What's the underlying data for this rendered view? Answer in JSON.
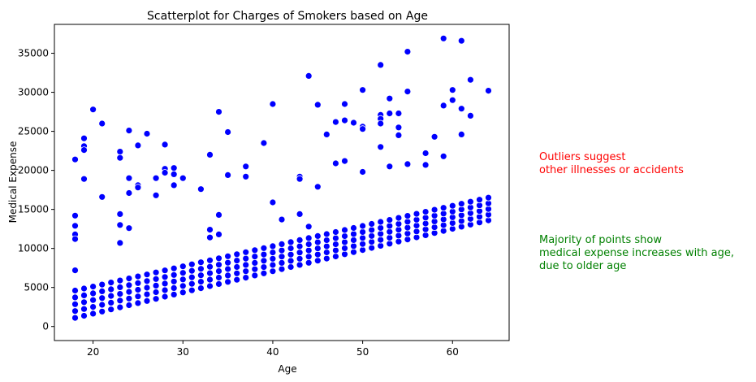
{
  "chart_data": {
    "type": "scatter",
    "title": "Scatterplot for Charges of Smokers based on Age",
    "xlabel": "Age",
    "ylabel": "Medical Expense",
    "xlim": [
      15.7,
      66.3
    ],
    "ylim": [
      -1800,
      38700
    ],
    "xticks": [
      20,
      30,
      40,
      50,
      60
    ],
    "yticks": [
      0,
      5000,
      10000,
      15000,
      20000,
      25000,
      30000,
      35000
    ],
    "grid": false,
    "marker_color": "#0000ff",
    "band": {
      "description_only": false,
      "lower_start": [
        18,
        1100
      ],
      "lower_end": [
        64,
        13600
      ],
      "upper_start": [
        18,
        4600
      ],
      "upper_end": [
        64,
        16500
      ],
      "rows": 5
    },
    "series": [
      {
        "points": [
          [
            18,
            21400
          ],
          [
            18,
            14200
          ],
          [
            18,
            12900
          ],
          [
            18,
            11800
          ],
          [
            18,
            11200
          ],
          [
            18,
            7200
          ],
          [
            19,
            24100
          ],
          [
            19,
            23100
          ],
          [
            19,
            22600
          ],
          [
            19,
            18900
          ],
          [
            20,
            27800
          ],
          [
            21,
            26000
          ],
          [
            21,
            16600
          ],
          [
            23,
            22400
          ],
          [
            23,
            21600
          ],
          [
            23,
            14400
          ],
          [
            23,
            13000
          ],
          [
            23,
            10700
          ],
          [
            24,
            25100
          ],
          [
            24,
            19000
          ],
          [
            24,
            17100
          ],
          [
            24,
            12600
          ],
          [
            25,
            23200
          ],
          [
            25,
            18100
          ],
          [
            25,
            17800
          ],
          [
            26,
            24700
          ],
          [
            27,
            19000
          ],
          [
            27,
            16800
          ],
          [
            28,
            23300
          ],
          [
            28,
            20200
          ],
          [
            28,
            19700
          ],
          [
            29,
            20300
          ],
          [
            29,
            19500
          ],
          [
            29,
            18100
          ],
          [
            30,
            19000
          ],
          [
            32,
            17600
          ],
          [
            33,
            22000
          ],
          [
            33,
            12400
          ],
          [
            33,
            11400
          ],
          [
            34,
            27500
          ],
          [
            34,
            14300
          ],
          [
            34,
            11800
          ],
          [
            35,
            24900
          ],
          [
            35,
            19400
          ],
          [
            37,
            20500
          ],
          [
            37,
            19200
          ],
          [
            39,
            23500
          ],
          [
            40,
            28500
          ],
          [
            40,
            15900
          ],
          [
            41,
            13700
          ],
          [
            43,
            19200
          ],
          [
            43,
            18900
          ],
          [
            43,
            14400
          ],
          [
            44,
            32100
          ],
          [
            44,
            12800
          ],
          [
            45,
            28400
          ],
          [
            45,
            17900
          ],
          [
            46,
            24600
          ],
          [
            47,
            26200
          ],
          [
            47,
            20900
          ],
          [
            48,
            28500
          ],
          [
            48,
            26400
          ],
          [
            48,
            21200
          ],
          [
            49,
            26100
          ],
          [
            50,
            30300
          ],
          [
            50,
            25600
          ],
          [
            50,
            25300
          ],
          [
            50,
            19800
          ],
          [
            52,
            33500
          ],
          [
            52,
            27100
          ],
          [
            52,
            26600
          ],
          [
            52,
            26000
          ],
          [
            52,
            23000
          ],
          [
            53,
            29200
          ],
          [
            53,
            27300
          ],
          [
            53,
            20500
          ],
          [
            54,
            27300
          ],
          [
            54,
            25500
          ],
          [
            54,
            24500
          ],
          [
            55,
            35200
          ],
          [
            55,
            30100
          ],
          [
            55,
            20800
          ],
          [
            57,
            22200
          ],
          [
            57,
            20700
          ],
          [
            58,
            24300
          ],
          [
            59,
            36900
          ],
          [
            59,
            28300
          ],
          [
            59,
            21800
          ],
          [
            60,
            30300
          ],
          [
            60,
            29000
          ],
          [
            61,
            36600
          ],
          [
            61,
            27900
          ],
          [
            61,
            24600
          ],
          [
            62,
            31600
          ],
          [
            62,
            27000
          ],
          [
            64,
            30200
          ]
        ]
      }
    ],
    "annotations": [
      {
        "text": "Outliers suggest\nother illnesses or accidents",
        "color": "#ff0000"
      },
      {
        "text": "Majority of points show\nmedical expense increases with age,\ndue to older age",
        "color": "#008000"
      }
    ]
  }
}
